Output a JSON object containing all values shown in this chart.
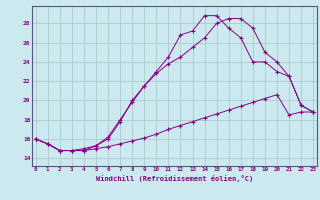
{
  "xlabel": "Windchill (Refroidissement éolien,°C)",
  "background_color": "#cce9f0",
  "line_color": "#880088",
  "grid_color": "#aacccc",
  "x_ticks": [
    0,
    1,
    2,
    3,
    4,
    5,
    6,
    7,
    8,
    9,
    10,
    11,
    12,
    13,
    14,
    15,
    16,
    17,
    18,
    19,
    20,
    21,
    22,
    23
  ],
  "y_ticks": [
    14,
    16,
    18,
    20,
    22,
    24,
    26,
    28
  ],
  "xlim": [
    -0.3,
    23.3
  ],
  "ylim": [
    13.2,
    29.8
  ],
  "series1_x": [
    0,
    1,
    2,
    3,
    4,
    5,
    6,
    7,
    8,
    9,
    10,
    11,
    12,
    13,
    14,
    15,
    16,
    17,
    18,
    19,
    20,
    21,
    22,
    23
  ],
  "series1_y": [
    16.0,
    15.5,
    14.8,
    14.8,
    14.8,
    15.0,
    15.2,
    15.5,
    15.8,
    16.1,
    16.5,
    17.0,
    17.4,
    17.8,
    18.2,
    18.6,
    19.0,
    19.4,
    19.8,
    20.2,
    20.6,
    18.5,
    18.8,
    18.8
  ],
  "series2_x": [
    0,
    1,
    2,
    3,
    4,
    5,
    6,
    7,
    8,
    9,
    10,
    11,
    12,
    13,
    14,
    15,
    16,
    17,
    18,
    19,
    20,
    21,
    22,
    23
  ],
  "series2_y": [
    16.0,
    15.5,
    14.8,
    14.8,
    15.0,
    15.3,
    16.2,
    18.0,
    19.8,
    21.5,
    22.8,
    23.8,
    24.5,
    25.5,
    26.5,
    28.0,
    28.5,
    28.5,
    27.5,
    25.0,
    24.0,
    22.5,
    19.5,
    18.8
  ],
  "series3_x": [
    0,
    1,
    2,
    3,
    4,
    5,
    6,
    7,
    8,
    9,
    10,
    11,
    12,
    13,
    14,
    15,
    16,
    17,
    18,
    19,
    20,
    21,
    22,
    23
  ],
  "series3_y": [
    16.0,
    15.5,
    14.8,
    14.8,
    14.8,
    15.3,
    16.0,
    17.8,
    20.0,
    21.5,
    23.0,
    24.5,
    26.8,
    27.2,
    28.8,
    28.8,
    27.5,
    26.5,
    24.0,
    24.0,
    23.0,
    22.5,
    19.5,
    18.8
  ]
}
